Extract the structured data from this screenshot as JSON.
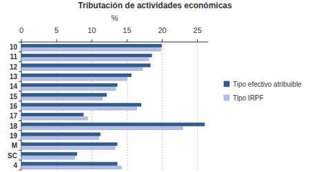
{
  "chart_data": {
    "type": "bar",
    "orientation": "horizontal",
    "title": "Tributación de actividades económicas",
    "x_label": "%",
    "categories": [
      "10",
      "11",
      "12",
      "13",
      "14",
      "15",
      "16",
      "17",
      "18",
      "19",
      "M",
      "SC",
      "4"
    ],
    "series": [
      {
        "name": "Tipo efectivo atribuible",
        "color": "#2f5e8e",
        "values": [
          19.9,
          18.5,
          18.3,
          15.6,
          13.6,
          12.1,
          17.0,
          8.8,
          26.0,
          11.2,
          13.6,
          7.9,
          13.6
        ]
      },
      {
        "name": "Tipo IRPF",
        "color": "#b3bfe9",
        "values": [
          19.8,
          18.1,
          17.2,
          15.0,
          13.4,
          11.5,
          16.4,
          9.4,
          22.9,
          11.0,
          13.3,
          7.6,
          14.2
        ]
      }
    ],
    "xlim": [
      0,
      26.5
    ],
    "xticks": [
      0,
      5,
      10,
      15,
      20,
      25
    ],
    "grid": true,
    "legend": "right"
  }
}
